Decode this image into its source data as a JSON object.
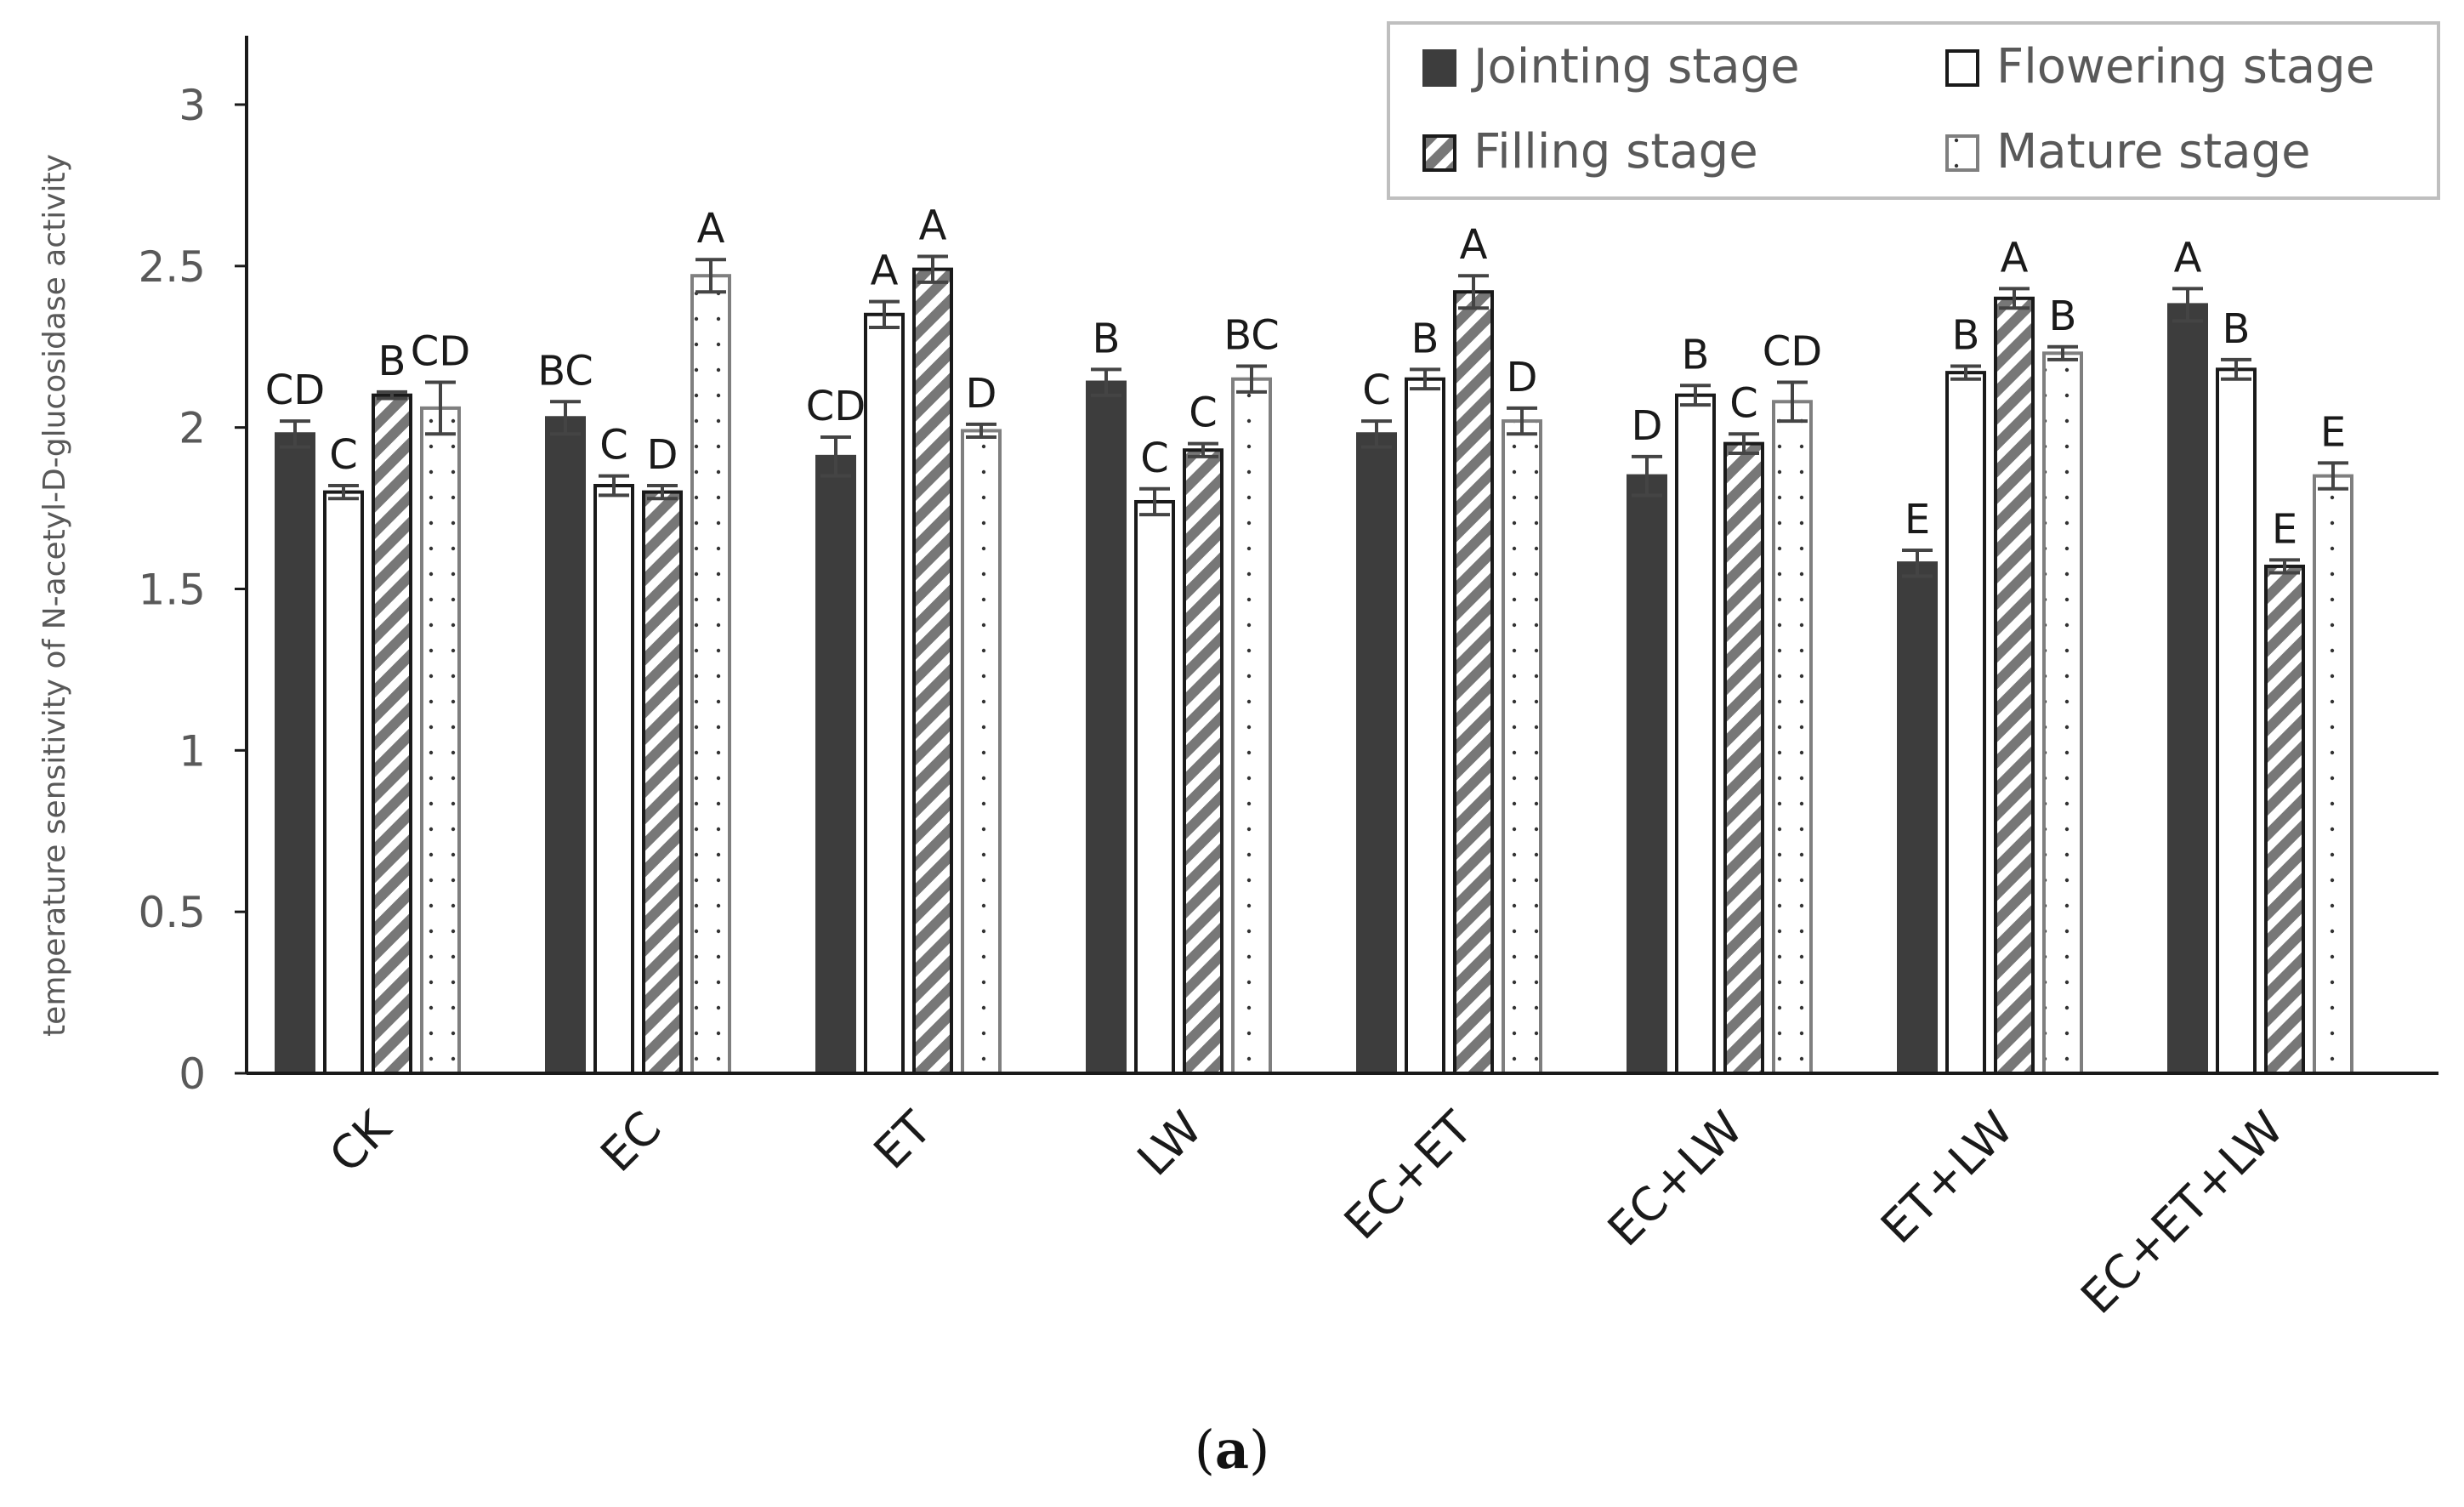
{
  "chart_data": {
    "type": "bar",
    "title": "",
    "xlabel": "",
    "ylabel": "temperature sensitivity of N-acetyl-D-glucosidase activity",
    "ylim": [
      0,
      3.2
    ],
    "yticks": [
      "0",
      "0.5",
      "1",
      "1.5",
      "2",
      "2.5",
      "3"
    ],
    "ytick_values": [
      0,
      0.5,
      1,
      1.5,
      2,
      2.5,
      3
    ],
    "categories": [
      "CK",
      "EC",
      "ET",
      "LW",
      "EC+ET",
      "EC+LW",
      "ET+LW",
      "EC+ET+LW"
    ],
    "series": [
      {
        "name": "Jointing stage",
        "pattern": "solid-dark",
        "values": [
          1.98,
          2.03,
          1.91,
          2.14,
          1.98,
          1.85,
          1.58,
          2.38
        ],
        "errors": [
          0.04,
          0.05,
          0.06,
          0.04,
          0.04,
          0.06,
          0.04,
          0.05
        ],
        "labels": [
          "CD",
          "BC",
          "CD",
          "B",
          "C",
          "D",
          "E",
          "A"
        ]
      },
      {
        "name": "Flowering stage",
        "pattern": "white",
        "values": [
          1.8,
          1.82,
          2.35,
          1.77,
          2.15,
          2.1,
          2.17,
          2.18
        ],
        "errors": [
          0.02,
          0.03,
          0.04,
          0.04,
          0.03,
          0.03,
          0.02,
          0.03
        ],
        "labels": [
          "C",
          "C",
          "A",
          "C",
          "B",
          "B",
          "B",
          "B"
        ]
      },
      {
        "name": "Filling stage",
        "pattern": "hatched",
        "values": [
          2.1,
          1.8,
          2.49,
          1.93,
          2.42,
          1.95,
          2.4,
          1.57
        ],
        "errors": [
          0.01,
          0.02,
          0.04,
          0.02,
          0.05,
          0.03,
          0.03,
          0.02
        ],
        "labels": [
          "B",
          "D",
          "A",
          "C",
          "A",
          "C",
          "A",
          "E"
        ]
      },
      {
        "name": "Mature stage",
        "pattern": "dotted",
        "values": [
          2.06,
          2.47,
          1.99,
          2.15,
          2.02,
          2.08,
          2.23,
          1.85
        ],
        "errors": [
          0.08,
          0.05,
          0.02,
          0.04,
          0.04,
          0.06,
          0.02,
          0.04
        ],
        "labels": [
          "CD",
          "A",
          "D",
          "BC",
          "D",
          "CD",
          "B",
          "E"
        ]
      }
    ],
    "legend": "top-right"
  },
  "caption": {
    "letter": "a"
  },
  "colors": {
    "dark": "#3d3d3d",
    "axis": "#1a1a1a",
    "hatch": "#777777",
    "error": "#444444",
    "tick_text": "#595959",
    "legend_border": "#bfbfbf",
    "mature_border": "#7f7f7f"
  }
}
